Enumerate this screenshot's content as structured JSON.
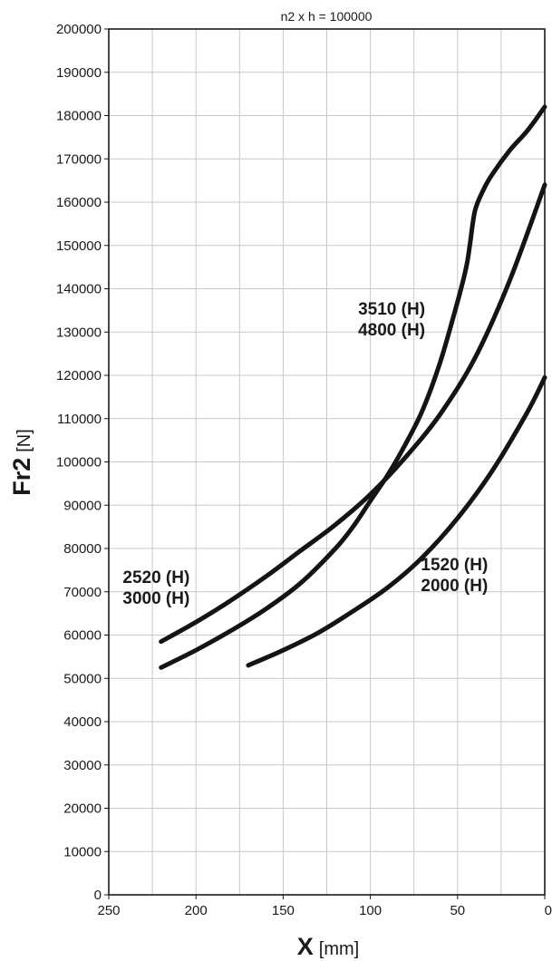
{
  "chart_data": {
    "type": "line",
    "title": "n2 x h = 100000",
    "xlabel": "X",
    "xlabel_unit": "[mm]",
    "ylabel": "Fr2",
    "ylabel_unit": "[N]",
    "xlim": [
      250,
      0
    ],
    "ylim": [
      0,
      200000
    ],
    "x_ticks": [
      250,
      200,
      150,
      100,
      50,
      0
    ],
    "x_ticks_display": [
      "250",
      "200",
      "150",
      "100",
      "50",
      "0"
    ],
    "y_ticks": [
      0,
      10000,
      20000,
      30000,
      40000,
      50000,
      60000,
      70000,
      80000,
      90000,
      100000,
      110000,
      120000,
      130000,
      140000,
      150000,
      160000,
      170000,
      180000,
      190000,
      200000
    ],
    "y_ticks_display": [
      "0",
      "10000",
      "20000",
      "30000",
      "40000",
      "50000",
      "60000",
      "70000",
      "80000",
      "90000",
      "100000",
      "110000",
      "120000",
      "130000",
      "140000",
      "150000",
      "160000",
      "170000",
      "180000",
      "190000",
      "200000"
    ],
    "x_grid_step": 25,
    "grid": true,
    "series": [
      {
        "x": [
          220,
          200,
          180,
          160,
          140,
          120,
          110,
          100,
          90,
          80,
          70,
          60,
          50,
          45,
          43,
          40,
          35,
          30,
          20,
          10,
          0
        ],
        "y": [
          52500,
          56500,
          61000,
          66000,
          72000,
          80000,
          85000,
          91000,
          97000,
          104000,
          112000,
          123000,
          137000,
          145000,
          150000,
          158000,
          163000,
          166500,
          172000,
          176500,
          182000
        ]
      },
      {
        "x": [
          220,
          200,
          180,
          160,
          140,
          120,
          100,
          80,
          60,
          40,
          20,
          0
        ],
        "y": [
          58500,
          63000,
          68000,
          73500,
          79500,
          85500,
          92500,
          101000,
          111000,
          124000,
          142000,
          164000
        ]
      },
      {
        "x": [
          170,
          150,
          130,
          110,
          90,
          70,
          50,
          30,
          10,
          0
        ],
        "y": [
          53000,
          56500,
          60500,
          65500,
          71000,
          78000,
          87000,
          98000,
          111500,
          119500
        ]
      }
    ],
    "annotations": [
      {
        "lines": [
          "3510 (H)",
          "4800 (H)"
        ],
        "x": 107,
        "y": 134000
      },
      {
        "lines": [
          "2520 (H)",
          "3000 (H)"
        ],
        "x": 242,
        "y": 72000
      },
      {
        "lines": [
          "1520 (H)",
          "2000 (H)"
        ],
        "x": 71,
        "y": 75000
      }
    ]
  }
}
